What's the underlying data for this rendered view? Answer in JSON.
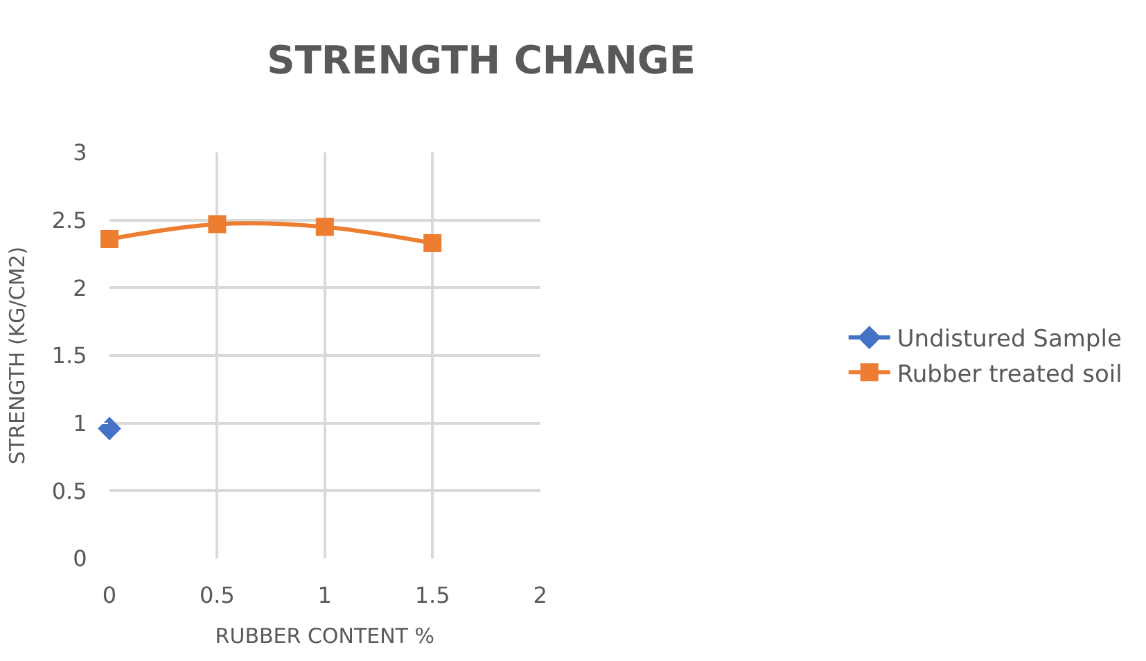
{
  "chart_data": {
    "type": "line",
    "title": "STRENGTH CHANGE",
    "xlabel": "RUBBER CONTENT %",
    "ylabel": "STRENGTH (KG/CM2)",
    "xlim": [
      0,
      2
    ],
    "xticks": [
      0,
      0.5,
      1,
      1.5,
      2
    ],
    "ylim": [
      0,
      3
    ],
    "yticks": [
      0,
      0.5,
      1,
      1.5,
      2,
      2.5,
      3
    ],
    "grid": true,
    "legend": "right",
    "series": [
      {
        "name": "Undistured Sample",
        "color": "#4472c4",
        "marker": "diamond",
        "x": [
          0
        ],
        "values": [
          0.96
        ]
      },
      {
        "name": "Rubber treated soil",
        "color": "#ed7d31",
        "marker": "square",
        "x": [
          0,
          0.5,
          1,
          1.5
        ],
        "values": [
          2.36,
          2.47,
          2.45,
          2.33
        ]
      }
    ]
  }
}
